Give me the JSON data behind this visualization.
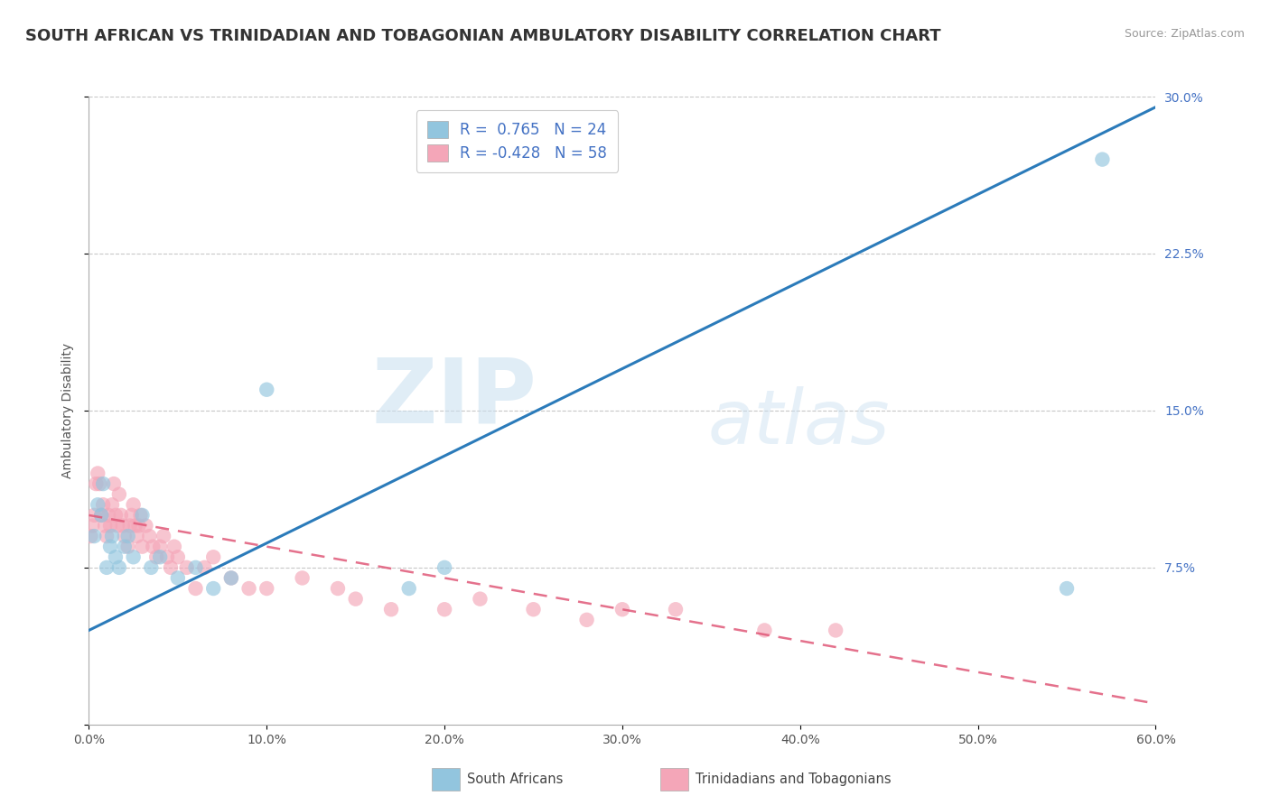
{
  "title": "SOUTH AFRICAN VS TRINIDADIAN AND TOBAGONIAN AMBULATORY DISABILITY CORRELATION CHART",
  "source": "Source: ZipAtlas.com",
  "ylabel": "Ambulatory Disability",
  "r_blue": 0.765,
  "n_blue": 24,
  "r_pink": -0.428,
  "n_pink": 58,
  "xlim": [
    0.0,
    0.6
  ],
  "ylim": [
    0.0,
    0.3
  ],
  "color_blue": "#92c5de",
  "color_pink": "#f4a6b8",
  "trendline_blue": "#2b7bba",
  "trendline_pink": "#e05878",
  "watermark_zip": "ZIP",
  "watermark_atlas": "atlas",
  "bg_color": "#ffffff",
  "grid_color": "#c8c8c8",
  "title_fontsize": 13,
  "axis_label_fontsize": 10,
  "tick_fontsize": 10,
  "blue_scatter_x": [
    0.003,
    0.005,
    0.007,
    0.008,
    0.01,
    0.012,
    0.013,
    0.015,
    0.017,
    0.02,
    0.022,
    0.025,
    0.03,
    0.035,
    0.04,
    0.05,
    0.06,
    0.07,
    0.08,
    0.1,
    0.18,
    0.2,
    0.55,
    0.57
  ],
  "blue_scatter_y": [
    0.09,
    0.105,
    0.1,
    0.115,
    0.075,
    0.085,
    0.09,
    0.08,
    0.075,
    0.085,
    0.09,
    0.08,
    0.1,
    0.075,
    0.08,
    0.07,
    0.075,
    0.065,
    0.07,
    0.16,
    0.065,
    0.075,
    0.065,
    0.27
  ],
  "pink_scatter_x": [
    0.001,
    0.002,
    0.003,
    0.004,
    0.005,
    0.006,
    0.007,
    0.008,
    0.009,
    0.01,
    0.011,
    0.012,
    0.013,
    0.014,
    0.015,
    0.016,
    0.017,
    0.018,
    0.019,
    0.02,
    0.022,
    0.023,
    0.024,
    0.025,
    0.026,
    0.027,
    0.028,
    0.029,
    0.03,
    0.032,
    0.034,
    0.036,
    0.038,
    0.04,
    0.042,
    0.044,
    0.046,
    0.048,
    0.05,
    0.055,
    0.06,
    0.065,
    0.07,
    0.08,
    0.09,
    0.1,
    0.12,
    0.14,
    0.15,
    0.17,
    0.2,
    0.22,
    0.25,
    0.28,
    0.3,
    0.33,
    0.38,
    0.42
  ],
  "pink_scatter_y": [
    0.09,
    0.095,
    0.1,
    0.115,
    0.12,
    0.115,
    0.1,
    0.105,
    0.095,
    0.09,
    0.1,
    0.095,
    0.105,
    0.115,
    0.1,
    0.095,
    0.11,
    0.1,
    0.095,
    0.09,
    0.085,
    0.095,
    0.1,
    0.105,
    0.095,
    0.09,
    0.095,
    0.1,
    0.085,
    0.095,
    0.09,
    0.085,
    0.08,
    0.085,
    0.09,
    0.08,
    0.075,
    0.085,
    0.08,
    0.075,
    0.065,
    0.075,
    0.08,
    0.07,
    0.065,
    0.065,
    0.07,
    0.065,
    0.06,
    0.055,
    0.055,
    0.06,
    0.055,
    0.05,
    0.055,
    0.055,
    0.045,
    0.045
  ],
  "blue_trendline_x": [
    0.0,
    0.6
  ],
  "blue_trendline_y": [
    0.045,
    0.295
  ],
  "pink_trendline_x": [
    0.0,
    0.6
  ],
  "pink_trendline_y": [
    0.1,
    0.01
  ]
}
